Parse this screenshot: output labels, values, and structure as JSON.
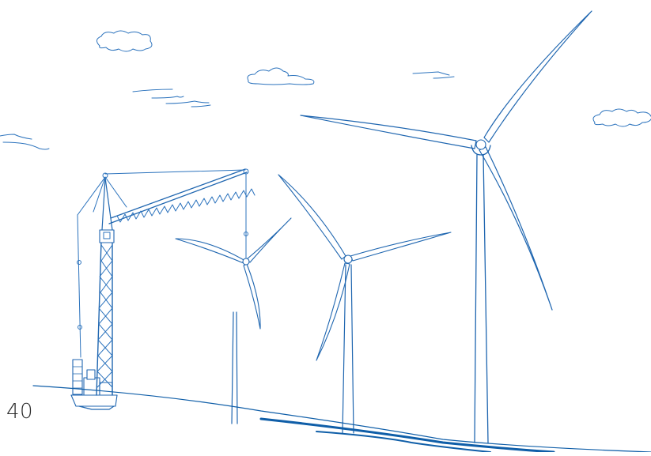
{
  "page": {
    "number": "40"
  },
  "colors": {
    "ink": "#1f66b0",
    "ground": "#0f5ea8",
    "page_number": "#2b2b2b",
    "background": "#ffffff"
  },
  "illustration": {
    "icons": [
      "wind-turbine-icon",
      "crane-icon",
      "cloud-icon",
      "wind-stroke-icon"
    ]
  }
}
